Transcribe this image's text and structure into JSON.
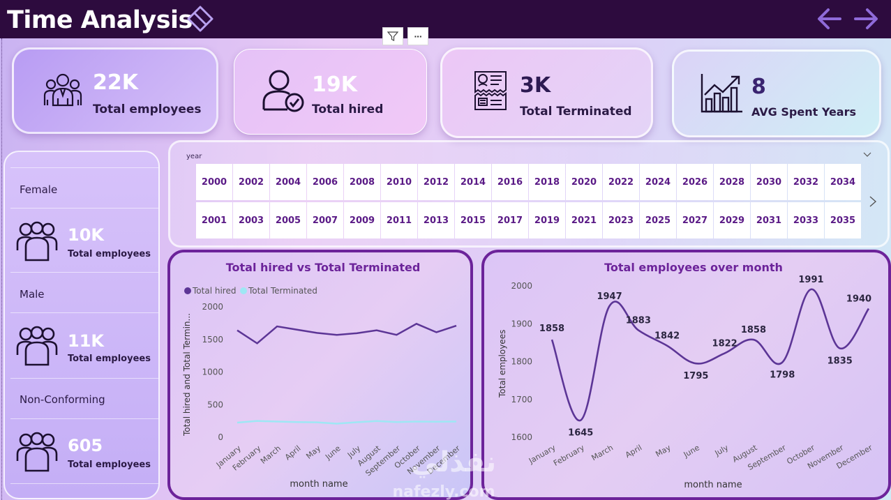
{
  "header": {
    "title": "Time Analysis",
    "icons": {
      "eraser": "eraser-icon",
      "prev": "arrow-left-icon",
      "next": "arrow-right-icon"
    }
  },
  "visual_tools": {
    "filter_icon": "filter-icon",
    "more_label": "···"
  },
  "kpis": [
    {
      "value": "22K",
      "label": "Total employees",
      "icon": "team-icon"
    },
    {
      "value": "19K",
      "label": "Total hired",
      "icon": "user-check-icon"
    },
    {
      "value": "3K",
      "label": "Total Terminated",
      "icon": "document-icon"
    },
    {
      "value": "8",
      "label": "AVG Spent Years",
      "icon": "growth-chart-icon"
    }
  ],
  "gender": [
    {
      "title": "Female",
      "value": "10K",
      "label": "Total employees"
    },
    {
      "title": "Male",
      "value": "11K",
      "label": "Total employees"
    },
    {
      "title": "Non-Conforming",
      "value": "605",
      "label": "Total employees"
    }
  ],
  "year_slicer": {
    "label": "year",
    "row1": [
      "2000",
      "2002",
      "2004",
      "2006",
      "2008",
      "2010",
      "2012",
      "2014",
      "2016",
      "2018",
      "2020",
      "2022",
      "2024",
      "2026",
      "2028",
      "2030",
      "2032",
      "2034"
    ],
    "row2": [
      "2001",
      "2003",
      "2005",
      "2007",
      "2009",
      "2011",
      "2013",
      "2015",
      "2017",
      "2019",
      "2021",
      "2023",
      "2025",
      "2027",
      "2029",
      "2031",
      "2033",
      "2035"
    ]
  },
  "colors": {
    "hired_line": "#5c3596",
    "terminated_line": "#9ee7f4",
    "chart_border": "#6c239a",
    "employees_line": "#5c3596",
    "header_bg": "#2d0b3e"
  },
  "watermark": {
    "latin": "nafezly.com",
    "arabic": "نفذلي"
  },
  "chart_data": [
    {
      "type": "line",
      "title": "Total hired vs Total Terminated",
      "xlabel": "month name",
      "ylabel": "Total hired and Total Termin...",
      "categories": [
        "January",
        "February",
        "March",
        "April",
        "May",
        "June",
        "July",
        "August",
        "September",
        "October",
        "November",
        "December"
      ],
      "ylim": [
        0,
        2000
      ],
      "yticks": [
        "0",
        "500",
        "1000",
        "1500",
        "2000"
      ],
      "legend_position": "top-left",
      "series": [
        {
          "name": "Total hired",
          "values": [
            1640,
            1440,
            1700,
            1650,
            1600,
            1570,
            1595,
            1640,
            1570,
            1740,
            1610,
            1710
          ]
        },
        {
          "name": "Total Terminated",
          "values": [
            225,
            250,
            240,
            232,
            228,
            208,
            230,
            248,
            232,
            240,
            238,
            240
          ]
        }
      ]
    },
    {
      "type": "line",
      "title": "Total employees over month",
      "xlabel": "month name",
      "ylabel": "Total employees",
      "categories": [
        "January",
        "February",
        "March",
        "April",
        "May",
        "June",
        "July",
        "August",
        "September",
        "October",
        "November",
        "December"
      ],
      "ylim": [
        1600,
        2000
      ],
      "yticks": [
        "1600",
        "1700",
        "1800",
        "1900",
        "2000"
      ],
      "series": [
        {
          "name": "Total employees",
          "values": [
            1858,
            1645,
            1947,
            1883,
            1842,
            1795,
            1822,
            1858,
            1798,
            1991,
            1835,
            1940
          ]
        }
      ]
    }
  ]
}
